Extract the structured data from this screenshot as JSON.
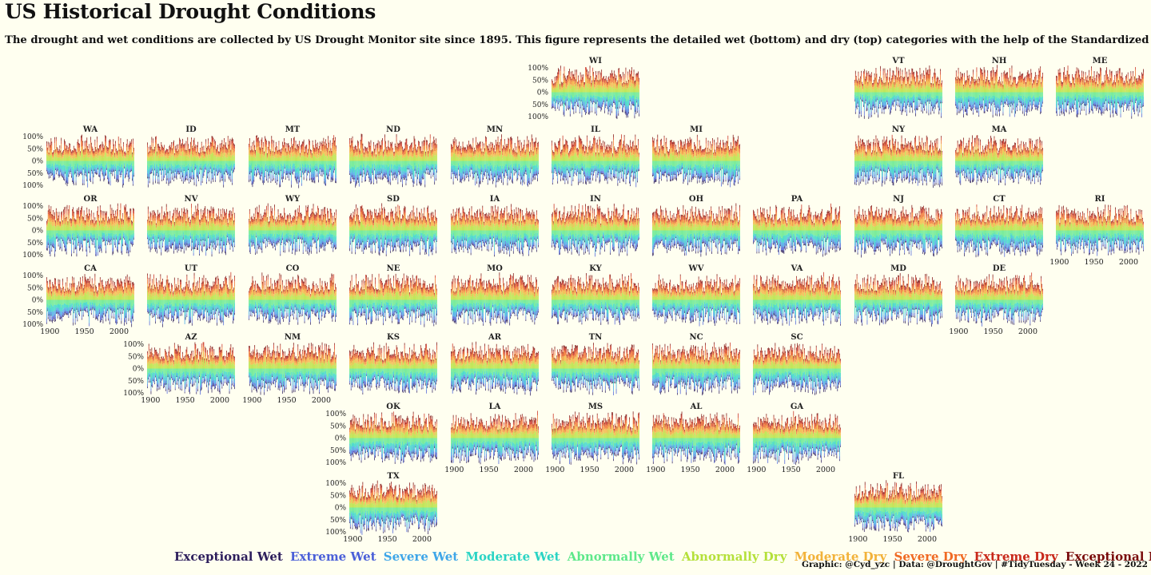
{
  "title": "US Historical Drought Conditions",
  "subtitle": "The drought and wet conditions are collected by US Drought Monitor site since 1895. This figure represents the detailed wet (bottom) and dry (top) categories with the help of the Standardized Precipitation Index (SPI).",
  "caption": "Graphic: @Cyd_yzc | Data: @DroughtGov | #TidyTuesday - Week 24 - 2022",
  "legend": [
    {
      "label": "Exceptional Wet",
      "color": "#2d1e5c"
    },
    {
      "label": "Extreme Wet",
      "color": "#4a5fd8"
    },
    {
      "label": "Severe Wet",
      "color": "#3fa6e8"
    },
    {
      "label": "Moderate Wet",
      "color": "#2ad4c4"
    },
    {
      "label": "Abnormally Wet",
      "color": "#5ee88a"
    },
    {
      "label": "Abnormally Dry",
      "color": "#b5e03a"
    },
    {
      "label": "Moderate Dry",
      "color": "#f2b23a"
    },
    {
      "label": "Severe Dry",
      "color": "#f06a24"
    },
    {
      "label": "Extreme Dry",
      "color": "#c8281a"
    },
    {
      "label": "Exceptional Dry",
      "color": "#7a0c0c"
    }
  ],
  "chart_data": {
    "type": "bar",
    "description_units": "percent of state area in each drought/wet category, by month, 1895-2022; dry categories stacked upward, wet categories stacked downward",
    "x_ticks": [
      1900,
      1950,
      2000
    ],
    "xlim": [
      1895,
      2022
    ],
    "y_ticks": [
      "100%",
      "50%",
      "0%",
      "50%",
      "100%"
    ],
    "ylim": [
      -100,
      100
    ],
    "states": [
      {
        "abbr": "WI",
        "row": 0,
        "col": 5
      },
      {
        "abbr": "VT",
        "row": 0,
        "col": 8
      },
      {
        "abbr": "NH",
        "row": 0,
        "col": 9
      },
      {
        "abbr": "ME",
        "row": 0,
        "col": 10
      },
      {
        "abbr": "WA",
        "row": 1,
        "col": 0
      },
      {
        "abbr": "ID",
        "row": 1,
        "col": 1
      },
      {
        "abbr": "MT",
        "row": 1,
        "col": 2
      },
      {
        "abbr": "ND",
        "row": 1,
        "col": 3
      },
      {
        "abbr": "MN",
        "row": 1,
        "col": 4
      },
      {
        "abbr": "IL",
        "row": 1,
        "col": 5
      },
      {
        "abbr": "MI",
        "row": 1,
        "col": 6
      },
      {
        "abbr": "NY",
        "row": 1,
        "col": 8
      },
      {
        "abbr": "MA",
        "row": 1,
        "col": 9
      },
      {
        "abbr": "OR",
        "row": 2,
        "col": 0
      },
      {
        "abbr": "NV",
        "row": 2,
        "col": 1
      },
      {
        "abbr": "WY",
        "row": 2,
        "col": 2
      },
      {
        "abbr": "SD",
        "row": 2,
        "col": 3
      },
      {
        "abbr": "IA",
        "row": 2,
        "col": 4
      },
      {
        "abbr": "IN",
        "row": 2,
        "col": 5
      },
      {
        "abbr": "OH",
        "row": 2,
        "col": 6
      },
      {
        "abbr": "PA",
        "row": 2,
        "col": 7
      },
      {
        "abbr": "NJ",
        "row": 2,
        "col": 8
      },
      {
        "abbr": "CT",
        "row": 2,
        "col": 9
      },
      {
        "abbr": "RI",
        "row": 2,
        "col": 10
      },
      {
        "abbr": "CA",
        "row": 3,
        "col": 0
      },
      {
        "abbr": "UT",
        "row": 3,
        "col": 1
      },
      {
        "abbr": "CO",
        "row": 3,
        "col": 2
      },
      {
        "abbr": "NE",
        "row": 3,
        "col": 3
      },
      {
        "abbr": "MO",
        "row": 3,
        "col": 4
      },
      {
        "abbr": "KY",
        "row": 3,
        "col": 5
      },
      {
        "abbr": "WV",
        "row": 3,
        "col": 6
      },
      {
        "abbr": "VA",
        "row": 3,
        "col": 7
      },
      {
        "abbr": "MD",
        "row": 3,
        "col": 8
      },
      {
        "abbr": "DE",
        "row": 3,
        "col": 9
      },
      {
        "abbr": "AZ",
        "row": 4,
        "col": 1
      },
      {
        "abbr": "NM",
        "row": 4,
        "col": 2
      },
      {
        "abbr": "KS",
        "row": 4,
        "col": 3
      },
      {
        "abbr": "AR",
        "row": 4,
        "col": 4
      },
      {
        "abbr": "TN",
        "row": 4,
        "col": 5
      },
      {
        "abbr": "NC",
        "row": 4,
        "col": 6
      },
      {
        "abbr": "SC",
        "row": 4,
        "col": 7
      },
      {
        "abbr": "OK",
        "row": 5,
        "col": 3
      },
      {
        "abbr": "LA",
        "row": 5,
        "col": 4
      },
      {
        "abbr": "MS",
        "row": 5,
        "col": 5
      },
      {
        "abbr": "AL",
        "row": 5,
        "col": 6
      },
      {
        "abbr": "GA",
        "row": 5,
        "col": 7
      },
      {
        "abbr": "TX",
        "row": 6,
        "col": 3
      },
      {
        "abbr": "FL",
        "row": 6,
        "col": 8
      }
    ],
    "y_axis_labels_on": [
      "WI",
      "WA",
      "OR",
      "CA",
      "AZ",
      "OK",
      "TX"
    ],
    "x_axis_labels_on": [
      "RI",
      "CA",
      "DE",
      "AZ",
      "NM",
      "LA",
      "MS",
      "AL",
      "GA",
      "TX",
      "FL"
    ]
  }
}
